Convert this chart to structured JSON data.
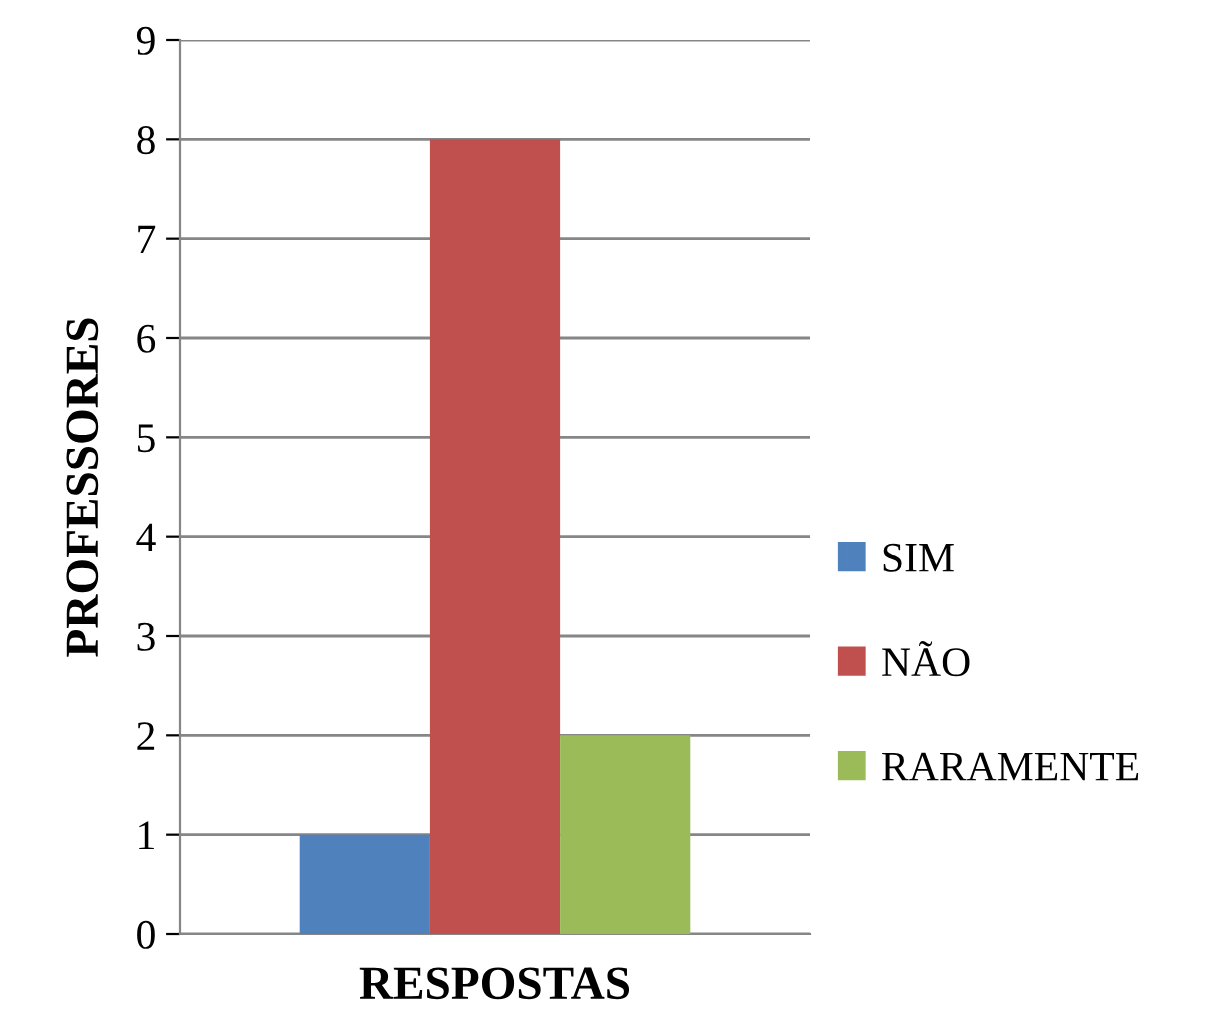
{
  "chart_data": {
    "type": "bar",
    "xlabel": "RESPOSTAS",
    "ylabel": "PROFESSORES",
    "categories": [
      null
    ],
    "series": [
      {
        "name": "SIM",
        "color": "#4f81bd",
        "values": [
          1
        ]
      },
      {
        "name": "NÃO",
        "color": "#c0504d",
        "values": [
          8
        ]
      },
      {
        "name": "RARAMENTE",
        "color": "#9bbb59",
        "values": [
          2
        ]
      }
    ],
    "ylim": [
      0,
      9
    ],
    "yticks": [
      0,
      1,
      2,
      3,
      4,
      5,
      6,
      7,
      8,
      9
    ],
    "grid": "y",
    "legend": "right"
  }
}
